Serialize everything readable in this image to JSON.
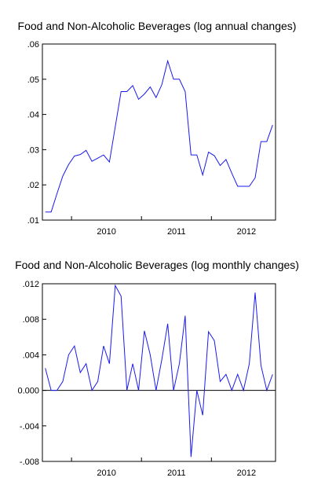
{
  "chart_data": [
    {
      "type": "line",
      "title": "Food and Non-Alcoholic Beverages (log annual changes)",
      "xlabel": "",
      "ylabel": "",
      "ylim": [
        0.01,
        0.06
      ],
      "y_ticks": [
        ".01",
        ".02",
        ".03",
        ".04",
        ".05",
        ".06"
      ],
      "y_tick_values": [
        0.01,
        0.02,
        0.03,
        0.04,
        0.05,
        0.06
      ],
      "x_ticks": [
        "2010",
        "2011",
        "2012"
      ],
      "x_start": "2009-08",
      "x_end": "2012-12",
      "grid": false,
      "series": [
        {
          "color": "#1a1aee",
          "values": [
            0.0123,
            0.0123,
            0.0175,
            0.0225,
            0.0258,
            0.0282,
            0.0286,
            0.0298,
            0.0267,
            0.0276,
            0.0285,
            0.0265,
            0.0365,
            0.0465,
            0.0465,
            0.0482,
            0.0443,
            0.0458,
            0.0478,
            0.0448,
            0.0485,
            0.0552,
            0.05,
            0.05,
            0.0465,
            0.0285,
            0.0285,
            0.0228,
            0.0293,
            0.0283,
            0.0255,
            0.0272,
            0.0233,
            0.0196,
            0.0196,
            0.0196,
            0.022,
            0.0323,
            0.0323,
            0.037
          ]
        }
      ]
    },
    {
      "type": "line",
      "title": "Food and Non-Alcoholic Beverages (log monthly changes)",
      "xlabel": "",
      "ylabel": "",
      "ylim": [
        -0.008,
        0.012
      ],
      "y_ticks": [
        "-.008",
        "-.004",
        "0.000",
        ".004",
        ".008",
        ".012"
      ],
      "y_tick_values": [
        -0.008,
        -0.004,
        0,
        0.004,
        0.008,
        0.012
      ],
      "x_ticks": [
        "2010",
        "2011",
        "2012"
      ],
      "x_start": "2009-08",
      "x_end": "2012-12",
      "grid": false,
      "zero_line": true,
      "series": [
        {
          "color": "#1a1aee",
          "values": [
            0.0025,
            0.0,
            0.0,
            0.001,
            0.004,
            0.005,
            0.002,
            0.003,
            0.0,
            0.001,
            0.005,
            0.003,
            0.0118,
            0.0106,
            0.0,
            0.003,
            0.0,
            0.0067,
            0.004,
            0.0,
            0.0035,
            0.0075,
            0.0,
            0.003,
            0.0084,
            -0.0075,
            0.0,
            -0.0028,
            0.0066,
            0.0056,
            0.001,
            0.0018,
            0.0,
            0.0018,
            0.0,
            0.003,
            0.011,
            0.0028,
            0.0,
            0.0018
          ]
        }
      ]
    }
  ]
}
